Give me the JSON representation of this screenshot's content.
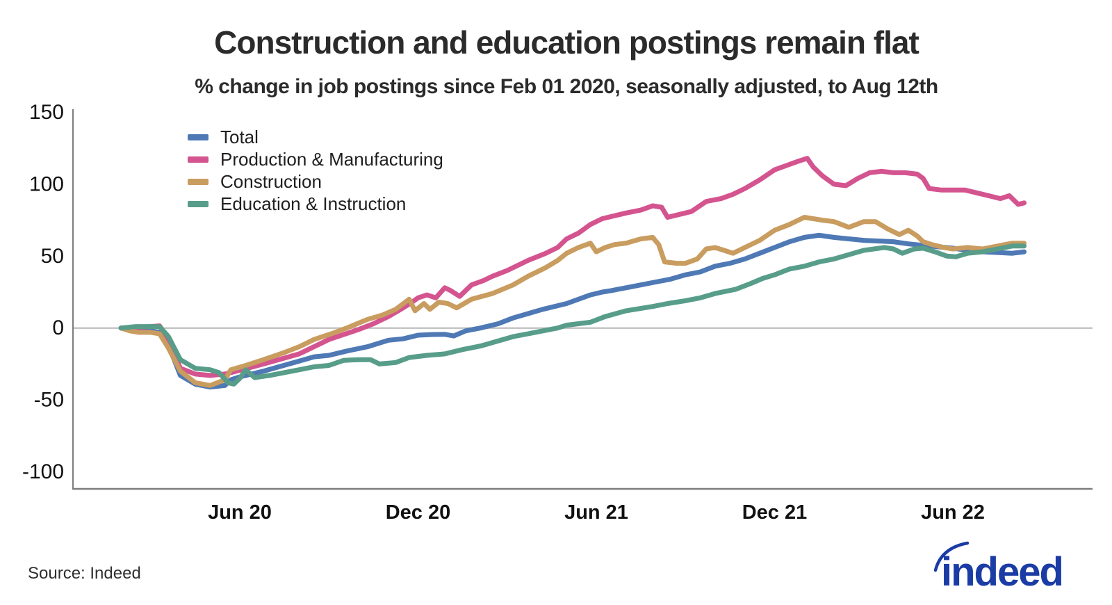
{
  "title": "Construction and education postings remain flat",
  "subtitle": "% change in job postings since Feb 01 2020, seasonally adjusted, to Aug 12th",
  "source": "Source: Indeed",
  "logo": {
    "text": "indeed",
    "color": "#1b3ba5"
  },
  "colors": {
    "spine": "#7d7d7d",
    "zero_line": "#c6c6c6",
    "tick_text": "#111111"
  },
  "chart_data": {
    "type": "line",
    "title": "Construction and education postings remain flat",
    "subtitle": "% change in job postings since Feb 01 2020, seasonally adjusted, to Aug 12th",
    "xlabel": "",
    "ylabel": "% change in job postings since Feb 01 2020",
    "x_unit": "months since Feb 01 2020",
    "xlim": [
      0,
      30.4
    ],
    "ylim": [
      -112,
      152
    ],
    "grid": false,
    "zero_line": true,
    "legend_position": "top-left",
    "y_ticks": [
      150,
      100,
      50,
      0,
      -50,
      -100
    ],
    "x_ticks": [
      {
        "t": 4,
        "label": "Jun 20"
      },
      {
        "t": 10,
        "label": "Dec 20"
      },
      {
        "t": 16,
        "label": "Jun 21"
      },
      {
        "t": 22,
        "label": "Dec 21"
      },
      {
        "t": 28,
        "label": "Jun 22"
      }
    ],
    "series": [
      {
        "name": "Total",
        "color": "#4e79b5",
        "points": [
          [
            0,
            0
          ],
          [
            0.5,
            -0.5
          ],
          [
            1,
            -2
          ],
          [
            1.3,
            -3
          ],
          [
            1.6,
            -12
          ],
          [
            2,
            -33
          ],
          [
            2.5,
            -39
          ],
          [
            3,
            -41
          ],
          [
            3.5,
            -40
          ],
          [
            3.7,
            -36
          ],
          [
            4,
            -34
          ],
          [
            4.8,
            -30
          ],
          [
            6,
            -23
          ],
          [
            6.5,
            -20
          ],
          [
            7,
            -19
          ],
          [
            7.6,
            -16
          ],
          [
            8.3,
            -13
          ],
          [
            9,
            -8.5
          ],
          [
            9.5,
            -7.5
          ],
          [
            10,
            -5
          ],
          [
            10.5,
            -4.5
          ],
          [
            10.9,
            -4.4
          ],
          [
            11.2,
            -5.5
          ],
          [
            11.6,
            -2
          ],
          [
            12.1,
            0
          ],
          [
            12.7,
            3
          ],
          [
            13.2,
            7
          ],
          [
            13.7,
            10
          ],
          [
            14.2,
            13
          ],
          [
            15,
            17
          ],
          [
            15.8,
            23
          ],
          [
            16.2,
            25
          ],
          [
            16.5,
            26
          ],
          [
            17,
            28
          ],
          [
            17.5,
            30
          ],
          [
            18,
            32
          ],
          [
            18.5,
            34
          ],
          [
            19,
            37
          ],
          [
            19.5,
            39
          ],
          [
            20,
            43
          ],
          [
            20.5,
            45
          ],
          [
            21,
            48
          ],
          [
            21.5,
            52
          ],
          [
            22,
            56
          ],
          [
            22.5,
            60
          ],
          [
            23,
            63
          ],
          [
            23.5,
            64.5
          ],
          [
            24,
            63
          ],
          [
            24.5,
            62
          ],
          [
            25,
            61
          ],
          [
            25.5,
            60.5
          ],
          [
            26,
            60
          ],
          [
            26.5,
            58.5
          ],
          [
            27,
            57.5
          ],
          [
            27.5,
            56.5
          ],
          [
            28,
            55.5
          ],
          [
            28.5,
            54
          ],
          [
            29,
            53
          ],
          [
            29.5,
            52.5
          ],
          [
            30,
            52
          ],
          [
            30.4,
            53
          ]
        ]
      },
      {
        "name": "Production & Manufacturing",
        "color": "#d4548f",
        "points": [
          [
            0,
            0
          ],
          [
            0.5,
            0.5
          ],
          [
            1,
            1
          ],
          [
            1.3,
            1.5
          ],
          [
            1.6,
            -8
          ],
          [
            2,
            -28
          ],
          [
            2.5,
            -32
          ],
          [
            3,
            -33
          ],
          [
            3.5,
            -32
          ],
          [
            3.7,
            -31
          ],
          [
            4.8,
            -25
          ],
          [
            6,
            -18
          ],
          [
            7,
            -8
          ],
          [
            8,
            -1
          ],
          [
            8.5,
            3
          ],
          [
            9,
            8
          ],
          [
            9.5,
            14
          ],
          [
            9.8,
            18
          ],
          [
            10,
            21
          ],
          [
            10.3,
            23
          ],
          [
            10.6,
            21
          ],
          [
            10.9,
            28
          ],
          [
            11.1,
            26
          ],
          [
            11.4,
            22
          ],
          [
            11.8,
            30
          ],
          [
            12.2,
            33
          ],
          [
            12.5,
            36
          ],
          [
            13,
            40
          ],
          [
            13.7,
            47
          ],
          [
            14.3,
            52
          ],
          [
            14.7,
            56
          ],
          [
            15,
            62
          ],
          [
            15.4,
            66
          ],
          [
            15.8,
            72
          ],
          [
            16.2,
            76
          ],
          [
            16.6,
            78
          ],
          [
            17,
            80
          ],
          [
            17.5,
            82
          ],
          [
            17.9,
            85
          ],
          [
            18.2,
            84
          ],
          [
            18.4,
            77
          ],
          [
            18.8,
            79
          ],
          [
            19.2,
            81
          ],
          [
            19.7,
            88
          ],
          [
            20.2,
            90
          ],
          [
            20.6,
            93
          ],
          [
            21,
            97
          ],
          [
            21.5,
            103
          ],
          [
            22,
            110
          ],
          [
            22.4,
            113
          ],
          [
            22.8,
            116
          ],
          [
            23.1,
            118
          ],
          [
            23.3,
            112
          ],
          [
            23.6,
            106
          ],
          [
            24,
            100
          ],
          [
            24.4,
            99
          ],
          [
            24.8,
            104
          ],
          [
            25.2,
            108
          ],
          [
            25.6,
            109
          ],
          [
            26,
            108
          ],
          [
            26.4,
            108
          ],
          [
            26.8,
            107
          ],
          [
            27,
            104
          ],
          [
            27.2,
            97
          ],
          [
            27.6,
            96
          ],
          [
            28,
            96
          ],
          [
            28.4,
            96
          ],
          [
            28.8,
            94
          ],
          [
            29.2,
            92
          ],
          [
            29.6,
            90
          ],
          [
            29.9,
            92
          ],
          [
            30.2,
            86
          ],
          [
            30.4,
            87
          ]
        ]
      },
      {
        "name": "Construction",
        "color": "#c99c5f",
        "points": [
          [
            0,
            0
          ],
          [
            0.3,
            -2
          ],
          [
            0.6,
            -3
          ],
          [
            1,
            -3
          ],
          [
            1.3,
            -4
          ],
          [
            1.6,
            -14
          ],
          [
            2,
            -30
          ],
          [
            2.5,
            -38
          ],
          [
            3,
            -40
          ],
          [
            3.5,
            -36
          ],
          [
            3.7,
            -29
          ],
          [
            4.2,
            -26
          ],
          [
            4.8,
            -22
          ],
          [
            5.5,
            -17
          ],
          [
            6,
            -13
          ],
          [
            6.5,
            -8
          ],
          [
            7.15,
            -3.5
          ],
          [
            7.6,
            0
          ],
          [
            8.3,
            6
          ],
          [
            8.8,
            9
          ],
          [
            9.25,
            13
          ],
          [
            9.7,
            20
          ],
          [
            9.9,
            12
          ],
          [
            10.2,
            17
          ],
          [
            10.4,
            13
          ],
          [
            10.7,
            18
          ],
          [
            11,
            17
          ],
          [
            11.3,
            14
          ],
          [
            11.8,
            20
          ],
          [
            12.5,
            24
          ],
          [
            13.2,
            30
          ],
          [
            13.7,
            36
          ],
          [
            14.3,
            42
          ],
          [
            14.7,
            47
          ],
          [
            15,
            52
          ],
          [
            15.4,
            56
          ],
          [
            15.8,
            59
          ],
          [
            16,
            53
          ],
          [
            16.3,
            56
          ],
          [
            16.6,
            58
          ],
          [
            17,
            59
          ],
          [
            17.5,
            62
          ],
          [
            17.9,
            63
          ],
          [
            18.1,
            58
          ],
          [
            18.3,
            46
          ],
          [
            18.7,
            45
          ],
          [
            19,
            45
          ],
          [
            19.4,
            48
          ],
          [
            19.7,
            55
          ],
          [
            20,
            56
          ],
          [
            20.3,
            54
          ],
          [
            20.6,
            52
          ],
          [
            21,
            56
          ],
          [
            21.5,
            61
          ],
          [
            22,
            68
          ],
          [
            22.5,
            72
          ],
          [
            23,
            77
          ],
          [
            23.3,
            76
          ],
          [
            23.6,
            75
          ],
          [
            24,
            74
          ],
          [
            24.5,
            70
          ],
          [
            25,
            74
          ],
          [
            25.4,
            74
          ],
          [
            25.8,
            69
          ],
          [
            26.2,
            65
          ],
          [
            26.5,
            68
          ],
          [
            26.8,
            64
          ],
          [
            27,
            60
          ],
          [
            27.3,
            58
          ],
          [
            27.7,
            56
          ],
          [
            28,
            55
          ],
          [
            28.5,
            56
          ],
          [
            29,
            55
          ],
          [
            29.5,
            57
          ],
          [
            30,
            59
          ],
          [
            30.4,
            59
          ]
        ]
      },
      {
        "name": "Education & Instruction",
        "color": "#579d89",
        "points": [
          [
            0,
            0
          ],
          [
            0.5,
            1
          ],
          [
            1,
            1
          ],
          [
            1.3,
            1
          ],
          [
            1.6,
            -6
          ],
          [
            2,
            -22
          ],
          [
            2.5,
            -28
          ],
          [
            3,
            -29
          ],
          [
            3.3,
            -31
          ],
          [
            3.6,
            -38
          ],
          [
            3.8,
            -39
          ],
          [
            4,
            -35
          ],
          [
            4.2,
            -29
          ],
          [
            4.5,
            -34.5
          ],
          [
            5,
            -33
          ],
          [
            5.5,
            -31
          ],
          [
            6,
            -29
          ],
          [
            6.5,
            -27
          ],
          [
            7,
            -26
          ],
          [
            7.5,
            -22.5
          ],
          [
            8,
            -22
          ],
          [
            8.4,
            -22
          ],
          [
            8.7,
            -25
          ],
          [
            9.25,
            -24
          ],
          [
            9.7,
            -20.5
          ],
          [
            10.3,
            -19
          ],
          [
            10.9,
            -18
          ],
          [
            11.5,
            -15
          ],
          [
            12.1,
            -12.5
          ],
          [
            12.7,
            -9
          ],
          [
            13.2,
            -6
          ],
          [
            13.7,
            -4
          ],
          [
            14.2,
            -2
          ],
          [
            14.7,
            0
          ],
          [
            15,
            2
          ],
          [
            15.8,
            4
          ],
          [
            16.3,
            8
          ],
          [
            17,
            12
          ],
          [
            17.9,
            15
          ],
          [
            18.4,
            17
          ],
          [
            19,
            19
          ],
          [
            19.5,
            21
          ],
          [
            20,
            24
          ],
          [
            20.7,
            27
          ],
          [
            21.2,
            31
          ],
          [
            21.6,
            34.5
          ],
          [
            22,
            37
          ],
          [
            22.5,
            41
          ],
          [
            23,
            43
          ],
          [
            23.5,
            46
          ],
          [
            24,
            48
          ],
          [
            24.5,
            51
          ],
          [
            25,
            54
          ],
          [
            25.7,
            56
          ],
          [
            26,
            55
          ],
          [
            26.3,
            52
          ],
          [
            26.7,
            55
          ],
          [
            27,
            55.5
          ],
          [
            27.4,
            53
          ],
          [
            27.8,
            50
          ],
          [
            28.1,
            49.5
          ],
          [
            28.5,
            52
          ],
          [
            29,
            53
          ],
          [
            29.5,
            55
          ],
          [
            30,
            57
          ],
          [
            30.4,
            57
          ]
        ]
      }
    ]
  }
}
